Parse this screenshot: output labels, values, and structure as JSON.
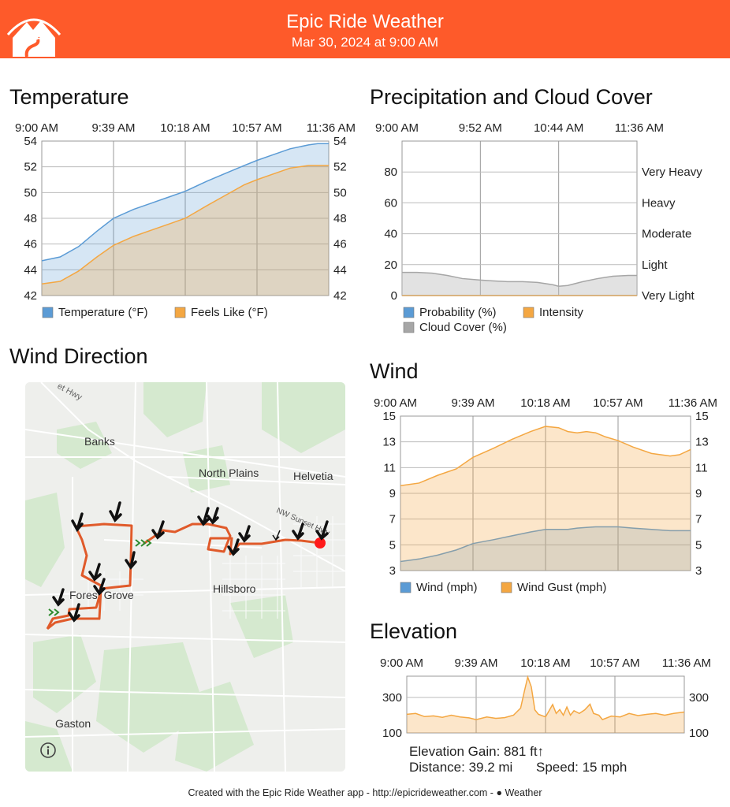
{
  "header": {
    "title": "Epic Ride Weather",
    "subtitle": "Mar 30, 2024 at 9:00 AM",
    "logo_icon": "mountain-road-logo-icon",
    "colors": {
      "header_bg": "#fe5a2a",
      "series_blue": "#5b9bd5",
      "series_orange": "#f4a742",
      "series_gray": "#a6a6a6",
      "route": "#e05a2a",
      "end_marker": "#ff1a1a"
    }
  },
  "sections": {
    "temperature": "Temperature",
    "precipitation": "Precipitation and Cloud Cover",
    "wind_direction": "Wind Direction",
    "wind": "Wind",
    "elevation": "Elevation"
  },
  "chart_data": [
    {
      "id": "temperature",
      "type": "area",
      "title": "Temperature",
      "x_tick_labels": [
        "9:00 AM",
        "9:39 AM",
        "10:18 AM",
        "10:57 AM",
        "11:36 AM"
      ],
      "x_range": [
        0,
        156
      ],
      "ylim": [
        42,
        54
      ],
      "y_ticks": [
        "42",
        "44",
        "46",
        "48",
        "50",
        "52",
        "54"
      ],
      "grid": true,
      "legend_position": "bottom-left",
      "x": [
        0,
        10,
        20,
        30,
        39,
        50,
        60,
        70,
        78,
        90,
        100,
        110,
        117,
        125,
        135,
        145,
        150,
        156
      ],
      "series": [
        {
          "name": "Temperature (°F)",
          "color": "#5b9bd5",
          "values": [
            44.7,
            45.0,
            45.8,
            47.0,
            48.0,
            48.7,
            49.2,
            49.7,
            50.1,
            50.9,
            51.5,
            52.1,
            52.5,
            52.9,
            53.4,
            53.7,
            53.8,
            53.8
          ]
        },
        {
          "name": "Feels Like (°F)",
          "color": "#f4a742",
          "values": [
            42.9,
            43.1,
            43.9,
            45.0,
            45.9,
            46.6,
            47.1,
            47.6,
            48.0,
            49.0,
            49.8,
            50.6,
            51.0,
            51.4,
            51.9,
            52.1,
            52.1,
            52.1
          ]
        }
      ]
    },
    {
      "id": "precipitation",
      "type": "area",
      "title": "Precipitation and Cloud Cover",
      "x_tick_labels": [
        "9:00 AM",
        "9:52 AM",
        "10:44 AM",
        "11:36 AM"
      ],
      "x_range": [
        0,
        156
      ],
      "ylim": [
        0,
        100
      ],
      "y_ticks": [
        "0",
        "20",
        "40",
        "60",
        "80"
      ],
      "right_tick_labels": [
        "Very Light",
        "Light",
        "Moderate",
        "Heavy",
        "Very Heavy"
      ],
      "grid": true,
      "legend_position": "bottom-left",
      "x": [
        0,
        10,
        20,
        30,
        40,
        52,
        60,
        70,
        80,
        90,
        100,
        104,
        110,
        120,
        130,
        140,
        150,
        156
      ],
      "series": [
        {
          "name": "Probability (%)",
          "color": "#5b9bd5",
          "values": [
            0,
            0,
            0,
            0,
            0,
            0,
            0,
            0,
            0,
            0,
            0,
            0,
            0,
            0,
            0,
            0,
            0,
            0
          ]
        },
        {
          "name": "Intensity",
          "color": "#f4a742",
          "values": [
            0,
            0,
            0,
            0,
            0,
            0,
            0,
            0,
            0,
            0,
            0,
            0,
            0,
            0,
            0,
            0,
            0,
            0
          ]
        },
        {
          "name": "Cloud Cover (%)",
          "color": "#a6a6a6",
          "values": [
            15,
            15,
            14.5,
            13,
            11,
            10,
            9.5,
            9,
            9,
            8.5,
            7,
            6,
            6.5,
            9,
            11,
            12.5,
            13,
            13
          ]
        }
      ]
    },
    {
      "id": "wind",
      "type": "area",
      "title": "Wind",
      "x_tick_labels": [
        "9:00 AM",
        "9:39 AM",
        "10:18 AM",
        "10:57 AM",
        "11:36 AM"
      ],
      "x_range": [
        0,
        156
      ],
      "ylim": [
        3,
        15
      ],
      "y_ticks": [
        "3",
        "5",
        "7",
        "9",
        "11",
        "13",
        "15"
      ],
      "grid": true,
      "legend_position": "bottom-left",
      "x": [
        0,
        10,
        20,
        30,
        39,
        50,
        60,
        70,
        78,
        85,
        90,
        95,
        100,
        105,
        110,
        117,
        125,
        135,
        145,
        150,
        156
      ],
      "series": [
        {
          "name": "Wind (mph)",
          "color": "#5b9bd5",
          "values": [
            3.7,
            3.9,
            4.2,
            4.6,
            5.1,
            5.4,
            5.7,
            6.0,
            6.2,
            6.2,
            6.2,
            6.3,
            6.35,
            6.4,
            6.4,
            6.4,
            6.3,
            6.2,
            6.1,
            6.1,
            6.1
          ]
        },
        {
          "name": "Wind Gust (mph)",
          "color": "#f4a742",
          "values": [
            9.6,
            9.8,
            10.4,
            10.9,
            11.8,
            12.5,
            13.2,
            13.8,
            14.2,
            14.1,
            13.8,
            13.7,
            13.8,
            13.7,
            13.4,
            13.1,
            12.6,
            12.1,
            11.9,
            12.0,
            12.4
          ]
        }
      ]
    },
    {
      "id": "elevation",
      "type": "area",
      "title": "Elevation",
      "x_tick_labels": [
        "9:00 AM",
        "9:39 AM",
        "10:18 AM",
        "10:57 AM",
        "11:36 AM"
      ],
      "x_range": [
        0,
        156
      ],
      "ylim": [
        100,
        420
      ],
      "y_ticks": [
        "100",
        "300"
      ],
      "grid": true,
      "x": [
        0,
        5,
        10,
        15,
        20,
        25,
        30,
        35,
        39,
        45,
        50,
        55,
        60,
        64,
        66,
        68,
        70,
        72,
        74,
        78,
        82,
        84,
        86,
        88,
        90,
        92,
        94,
        97,
        100,
        103,
        105,
        108,
        110,
        115,
        120,
        125,
        130,
        135,
        140,
        145,
        150,
        156
      ],
      "series": [
        {
          "name": "Elevation",
          "color": "#f4a742",
          "values": [
            205,
            210,
            192,
            196,
            188,
            200,
            190,
            185,
            175,
            190,
            182,
            186,
            200,
            240,
            330,
            415,
            360,
            230,
            205,
            190,
            260,
            210,
            232,
            200,
            246,
            200,
            225,
            210,
            230,
            262,
            210,
            200,
            175,
            195,
            190,
            210,
            198,
            205,
            210,
            200,
            210,
            218
          ]
        }
      ]
    }
  ],
  "legends": {
    "temperature": [
      "Temperature (°F)",
      "Feels Like (°F)"
    ],
    "precipitation": [
      "Probability (%)",
      "Intensity",
      "Cloud Cover (%)"
    ],
    "wind": [
      "Wind (mph)",
      "Wind Gust (mph)"
    ]
  },
  "map": {
    "labels": {
      "hwy_top": "et Hwy",
      "banks": "Banks",
      "north_plains": "North Plains",
      "helvetia": "Helvetia",
      "sunset_hwy": "NW Sunset Hwy",
      "forest_grove": "Forest Grove",
      "hillsboro": "Hillsboro",
      "gaston": "Gaston"
    },
    "info_icon": "info-icon",
    "wind_arrow_icon": "wind-arrow-icon",
    "start_marker_icon": "chevrons-right-icon",
    "end_marker_icon": "end-point-dot-icon"
  },
  "stats": {
    "elevation_gain": "Elevation Gain: 881 ft↑",
    "distance": "Distance: 39.2 mi",
    "speed": "Speed: 15 mph"
  },
  "footer": {
    "text": "Created with the Epic Ride Weather app - http://epicrideweather.com - ",
    "weather_brand": "Weather",
    "apple_icon": "apple-logo-icon"
  }
}
